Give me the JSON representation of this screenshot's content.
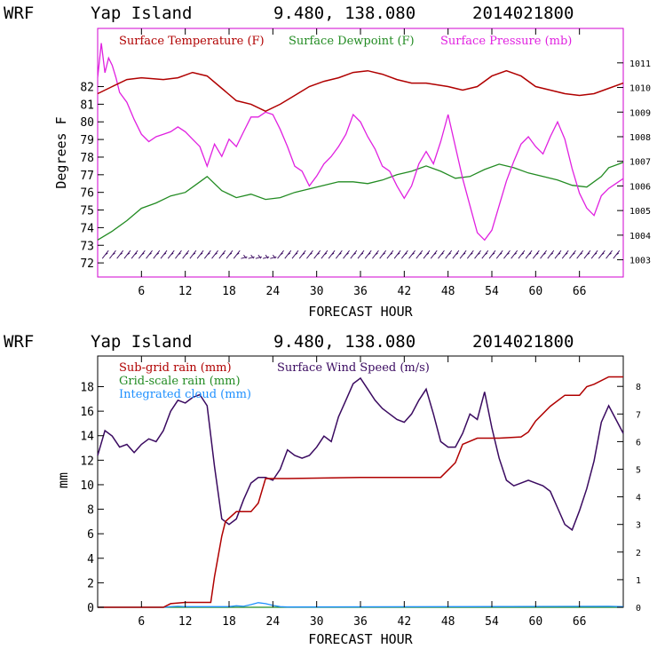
{
  "chart_data": [
    {
      "type": "line",
      "title": {
        "model": "WRF",
        "location": "Yap Island",
        "coords": "9.480, 138.080",
        "date": "2014021800"
      },
      "xlabel": "FORECAST HOUR",
      "ylabel": "Degrees F",
      "xlim": [
        0,
        72
      ],
      "xticks": [
        6,
        12,
        18,
        24,
        30,
        36,
        42,
        48,
        54,
        60,
        66
      ],
      "ylim": [
        71.2,
        85.3
      ],
      "yticks": [
        72,
        73,
        74,
        75,
        76,
        77,
        78,
        79,
        80,
        81,
        82
      ],
      "y2lim": [
        1002.3,
        1012.4
      ],
      "y2ticks": [
        1003,
        1004,
        1005,
        1006,
        1007,
        1008,
        1009,
        1010,
        1011
      ],
      "colors": {
        "temperature": "#b00000",
        "dewpoint": "#228b22",
        "pressure": "#e020e0",
        "wind_barbs": "#3a0a60"
      },
      "series": [
        {
          "name": "Surface Temperature (F)",
          "axis": "left",
          "x": [
            0,
            2,
            4,
            6,
            9,
            11,
            13,
            15,
            17,
            19,
            21,
            23,
            25,
            27,
            29,
            31,
            33,
            35,
            37,
            39,
            41,
            43,
            45,
            48,
            50,
            52,
            54,
            56,
            58,
            60,
            62,
            64,
            66,
            68,
            70,
            72
          ],
          "values": [
            81.6,
            82.0,
            82.4,
            82.5,
            82.4,
            82.5,
            82.8,
            82.6,
            81.9,
            81.2,
            81.0,
            80.6,
            81.0,
            81.5,
            82.0,
            82.3,
            82.5,
            82.8,
            82.9,
            82.7,
            82.4,
            82.2,
            82.2,
            82.0,
            81.8,
            82.0,
            82.6,
            82.9,
            82.6,
            82.0,
            81.8,
            81.6,
            81.5,
            81.6,
            81.9,
            82.2
          ]
        },
        {
          "name": "Surface Dewpoint (F)",
          "axis": "left",
          "x": [
            0,
            2,
            4,
            6,
            8,
            10,
            12,
            14,
            15,
            17,
            19,
            21,
            23,
            25,
            27,
            29,
            31,
            33,
            35,
            37,
            39,
            41,
            43,
            45,
            47,
            49,
            51,
            53,
            55,
            57,
            59,
            61,
            63,
            65,
            67,
            69,
            70,
            72
          ],
          "values": [
            73.3,
            73.8,
            74.4,
            75.1,
            75.4,
            75.8,
            76.0,
            76.6,
            76.9,
            76.1,
            75.7,
            75.9,
            75.6,
            75.7,
            76.0,
            76.2,
            76.4,
            76.6,
            76.6,
            76.5,
            76.7,
            77.0,
            77.2,
            77.5,
            77.2,
            76.8,
            76.9,
            77.3,
            77.6,
            77.4,
            77.1,
            76.9,
            76.7,
            76.4,
            76.3,
            76.9,
            77.4,
            77.7
          ]
        },
        {
          "name": "Surface Pressure (mb)",
          "axis": "right",
          "x": [
            0,
            0.5,
            1,
            1.5,
            2,
            2.5,
            3,
            4,
            5,
            6,
            7,
            8,
            9,
            10,
            11,
            12,
            13,
            14,
            15,
            16,
            17,
            18,
            19,
            20,
            21,
            22,
            23,
            24,
            25,
            26,
            27,
            28,
            29,
            30,
            31,
            32,
            33,
            34,
            35,
            36,
            37,
            38,
            39,
            40,
            41,
            42,
            43,
            44,
            45,
            46,
            47,
            48,
            49,
            50,
            51,
            52,
            53,
            54,
            55,
            56,
            57,
            58,
            59,
            60,
            61,
            62,
            63,
            64,
            65,
            66,
            67,
            68,
            69,
            70,
            71,
            72
          ],
          "values": [
            1010.4,
            1011.8,
            1010.6,
            1011.2,
            1010.9,
            1010.4,
            1009.8,
            1009.4,
            1008.7,
            1008.1,
            1007.8,
            1008.0,
            1008.1,
            1008.2,
            1008.4,
            1008.2,
            1007.9,
            1007.6,
            1006.8,
            1007.7,
            1007.2,
            1007.9,
            1007.6,
            1008.2,
            1008.8,
            1008.8,
            1009.0,
            1008.9,
            1008.3,
            1007.6,
            1006.8,
            1006.6,
            1006.0,
            1006.4,
            1006.9,
            1007.2,
            1007.6,
            1008.1,
            1008.9,
            1008.6,
            1008.0,
            1007.5,
            1006.8,
            1006.6,
            1006.0,
            1005.5,
            1006.0,
            1006.9,
            1007.4,
            1006.9,
            1007.8,
            1008.9,
            1007.6,
            1006.3,
            1005.2,
            1004.1,
            1003.8,
            1004.2,
            1005.2,
            1006.2,
            1007.0,
            1007.7,
            1008.0,
            1007.6,
            1007.3,
            1008.0,
            1008.6,
            1007.9,
            1006.7,
            1005.7,
            1005.1,
            1004.8,
            1005.6,
            1005.9,
            1006.1,
            1006.3
          ]
        },
        {
          "name": "Wind Barbs",
          "axis": "left",
          "level": 72.4
        }
      ],
      "legend": [
        "Surface Temperature (F)",
        "Surface Dewpoint (F)",
        "Surface Pressure (mb)"
      ]
    },
    {
      "type": "line",
      "title": {
        "model": "WRF",
        "location": "Yap Island",
        "coords": "9.480, 138.080",
        "date": "2014021800"
      },
      "xlabel": "FORECAST HOUR",
      "ylabel": "mm",
      "xlim": [
        0,
        72
      ],
      "xticks": [
        6,
        12,
        18,
        24,
        30,
        36,
        42,
        48,
        54,
        60,
        66
      ],
      "ylim": [
        0,
        20.5
      ],
      "yticks": [
        0,
        2,
        4,
        6,
        8,
        10,
        12,
        14,
        16,
        18
      ],
      "y2lim": [
        0,
        9.1
      ],
      "y2ticks": [
        0,
        1,
        2,
        3,
        4,
        5,
        6,
        7,
        8
      ],
      "colors": {
        "subgrid": "#b00000",
        "gridscale": "#228b22",
        "cloud": "#1e90ff",
        "wind": "#3a0a60"
      },
      "series": [
        {
          "name": "Sub-grid rain (mm)",
          "axis": "left",
          "x": [
            0,
            9,
            10,
            12,
            15.5,
            16,
            17,
            17.5,
            19,
            21,
            22,
            23,
            26,
            36,
            47,
            49,
            50,
            52,
            55,
            58,
            59,
            60,
            62,
            64,
            66,
            67,
            68,
            70,
            72
          ],
          "values": [
            0,
            0,
            0.3,
            0.4,
            0.4,
            2.5,
            5.8,
            7.0,
            7.8,
            7.8,
            8.5,
            10.5,
            10.5,
            10.6,
            10.6,
            11.8,
            13.3,
            13.8,
            13.8,
            13.9,
            14.3,
            15.2,
            16.4,
            17.3,
            17.3,
            18.0,
            18.2,
            18.8,
            18.8
          ]
        },
        {
          "name": "Grid-scale rain (mm)",
          "axis": "left",
          "x": [
            0,
            72
          ],
          "values": [
            0,
            0
          ]
        },
        {
          "name": "Integrated cloud (mm)",
          "axis": "left",
          "x": [
            0,
            9,
            10,
            11,
            12,
            18,
            19,
            20,
            21,
            22,
            23,
            24,
            25,
            26,
            70,
            72
          ],
          "values": [
            0,
            0,
            0.05,
            0.08,
            0.05,
            0.05,
            0.12,
            0.08,
            0.22,
            0.38,
            0.3,
            0.15,
            0.05,
            0.02,
            0.08,
            0.05
          ]
        },
        {
          "name": "Surface Wind Speed (m/s)",
          "axis": "right",
          "x": [
            0,
            1,
            2,
            3,
            4,
            5,
            6,
            7,
            8,
            9,
            10,
            11,
            12,
            13,
            14,
            15,
            16,
            17,
            18,
            19,
            20,
            21,
            22,
            23,
            24,
            25,
            26,
            27,
            28,
            29,
            30,
            31,
            32,
            33,
            34,
            35,
            36,
            37,
            38,
            39,
            40,
            41,
            42,
            43,
            44,
            45,
            46,
            47,
            48,
            49,
            50,
            51,
            52,
            53,
            54,
            55,
            56,
            57,
            58,
            59,
            60,
            61,
            62,
            63,
            64,
            65,
            66,
            67,
            68,
            69,
            70,
            71,
            72
          ],
          "values": [
            5.5,
            6.4,
            6.2,
            5.8,
            5.9,
            5.6,
            5.9,
            6.1,
            6.0,
            6.4,
            7.1,
            7.5,
            7.4,
            7.6,
            7.7,
            7.3,
            5.1,
            3.2,
            3.0,
            3.2,
            3.9,
            4.5,
            4.7,
            4.7,
            4.6,
            5.0,
            5.7,
            5.5,
            5.4,
            5.5,
            5.8,
            6.2,
            6.0,
            6.9,
            7.5,
            8.1,
            8.3,
            7.9,
            7.5,
            7.2,
            7.0,
            6.8,
            6.7,
            7.0,
            7.5,
            7.9,
            7.0,
            6.0,
            5.8,
            5.8,
            6.3,
            7.0,
            6.8,
            7.8,
            6.5,
            5.4,
            4.6,
            4.4,
            4.5,
            4.6,
            4.5,
            4.4,
            4.2,
            3.6,
            3.0,
            2.8,
            3.5,
            4.3,
            5.3,
            6.7,
            7.3,
            6.8,
            6.3
          ]
        }
      ],
      "legend": [
        "Sub-grid rain (mm)",
        "Grid-scale rain (mm)",
        "Integrated cloud (mm)",
        "Surface Wind Speed (m/s)"
      ]
    }
  ]
}
